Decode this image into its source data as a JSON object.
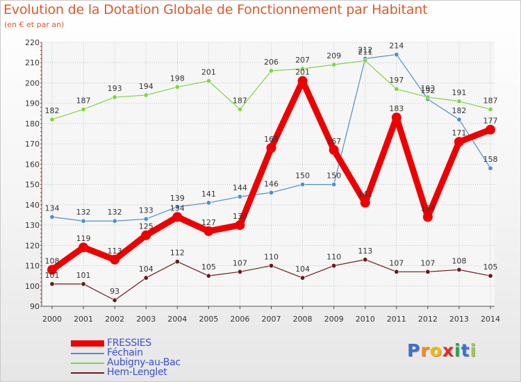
{
  "chart_data": {
    "type": "line",
    "title": "Evolution de la Dotation Globale de Fonctionnement par Habitant",
    "subtitle": "(en € et par an)",
    "xlabel": "",
    "ylabel": "",
    "x": [
      "2000",
      "2001",
      "2002",
      "2003",
      "2004",
      "2005",
      "2006",
      "2007",
      "2008",
      "2009",
      "2010",
      "2011",
      "2012",
      "2013",
      "2014"
    ],
    "ylim": [
      90,
      220
    ],
    "yticks": [
      "90",
      "100",
      "110",
      "120",
      "130",
      "140",
      "150",
      "160",
      "170",
      "180",
      "190",
      "200",
      "210",
      "220"
    ],
    "series": [
      {
        "name": "FRESSIES",
        "color": "#ee0000",
        "values": [
          108,
          119,
          113,
          125,
          134,
          127,
          130,
          168,
          201,
          167,
          141,
          183,
          134,
          171,
          177
        ]
      },
      {
        "name": "Féchain",
        "color": "#4a90d0",
        "values": [
          134,
          132,
          132,
          133,
          139,
          141,
          144,
          146,
          150,
          150,
          212,
          214,
          192,
          182,
          158
        ]
      },
      {
        "name": "Aubigny-au-Bac",
        "color": "#7ed443",
        "values": [
          182,
          187,
          193,
          194,
          198,
          201,
          187,
          206,
          207,
          209,
          211,
          197,
          193,
          191,
          187
        ]
      },
      {
        "name": "Hem-Lenglet",
        "color": "#6b1a1a",
        "values": [
          101,
          101,
          93,
          104,
          112,
          105,
          107,
          110,
          104,
          110,
          113,
          107,
          107,
          108,
          105
        ]
      }
    ],
    "legend_position": "bottom-left"
  },
  "logo": {
    "letters": [
      "P",
      "r",
      "o",
      "x",
      "i",
      "t",
      "i"
    ],
    "colors": [
      "#3b6fd4",
      "#f08a1c",
      "#f4b800",
      "#e02a2a",
      "#2aa54a",
      "#3b6fd4",
      "#9bcf3a"
    ]
  }
}
